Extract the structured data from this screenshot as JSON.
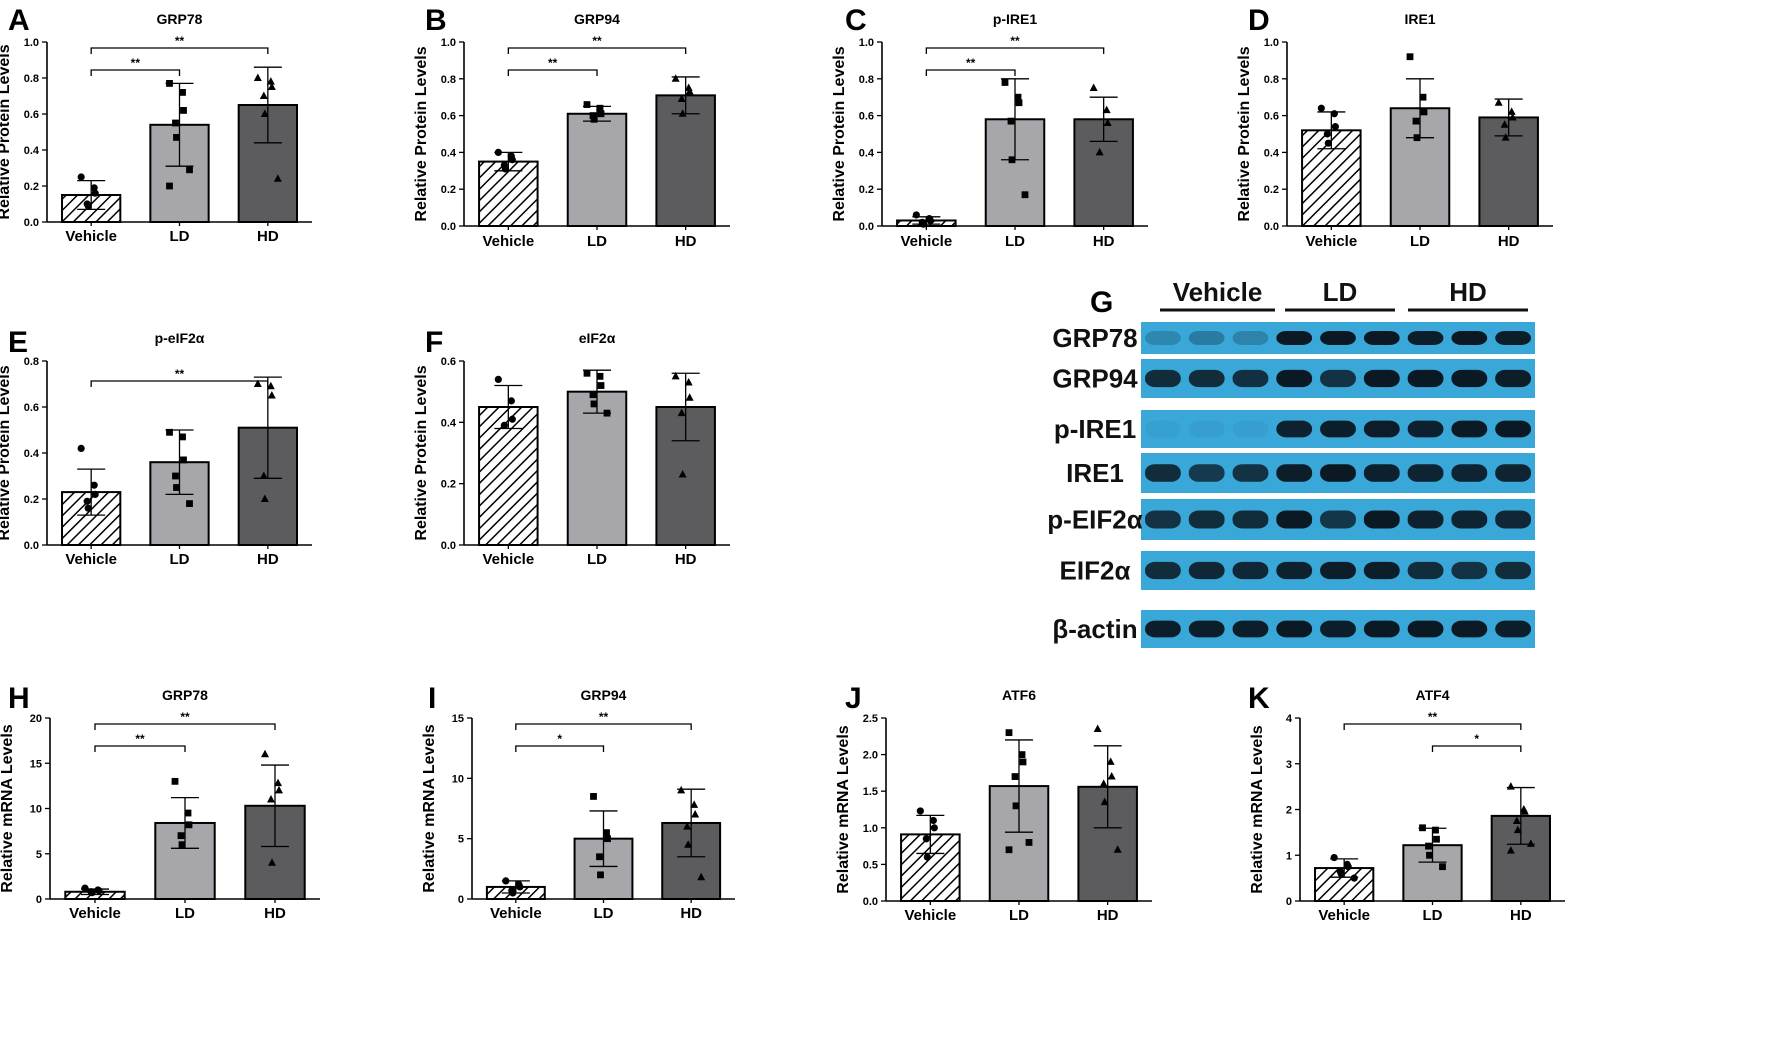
{
  "colors": {
    "vehicle_fill": "#ffffff",
    "ld_fill": "#a7a7ab",
    "hd_fill": "#5c5c5e",
    "blot_bg": "#39a7d8",
    "band": "#0a1620"
  },
  "chart_data": [
    {
      "panel": "A",
      "type": "bar",
      "title": "GRP78",
      "ylabel": "Relative Protein Levels",
      "ylim": [
        0,
        1.0
      ],
      "yticks": [
        "0.0",
        "0.2",
        "0.4",
        "0.6",
        "0.8",
        "1.0"
      ],
      "categories": [
        "Vehicle",
        "LD",
        "HD"
      ],
      "values": [
        0.15,
        0.54,
        0.65
      ],
      "errors": [
        0.08,
        0.23,
        0.21
      ],
      "points": [
        [
          0.25,
          0.19,
          0.16,
          0.1,
          0.09
        ],
        [
          0.77,
          0.72,
          0.62,
          0.55,
          0.47,
          0.29,
          0.2
        ],
        [
          0.8,
          0.78,
          0.75,
          0.7,
          0.6,
          0.24
        ]
      ],
      "significance": [
        {
          "from": 0,
          "to": 1,
          "label": "**"
        },
        {
          "from": 0,
          "to": 2,
          "label": "**"
        }
      ]
    },
    {
      "panel": "B",
      "type": "bar",
      "title": "GRP94",
      "ylabel": "Relative Protein Levels",
      "ylim": [
        0,
        1.0
      ],
      "yticks": [
        "0.0",
        "0.2",
        "0.4",
        "0.6",
        "0.8",
        "1.0"
      ],
      "categories": [
        "Vehicle",
        "LD",
        "HD"
      ],
      "values": [
        0.35,
        0.61,
        0.71
      ],
      "errors": [
        0.05,
        0.04,
        0.1
      ],
      "points": [
        [
          0.4,
          0.38,
          0.36,
          0.33,
          0.31
        ],
        [
          0.66,
          0.64,
          0.61,
          0.6,
          0.58
        ],
        [
          0.8,
          0.75,
          0.73,
          0.69,
          0.61
        ]
      ],
      "significance": [
        {
          "from": 0,
          "to": 1,
          "label": "**"
        },
        {
          "from": 0,
          "to": 2,
          "label": "**"
        }
      ]
    },
    {
      "panel": "C",
      "type": "bar",
      "title": "p-IRE1",
      "ylabel": "Relative Protein Levels",
      "ylim": [
        0,
        1.0
      ],
      "yticks": [
        "0.0",
        "0.2",
        "0.4",
        "0.6",
        "0.8",
        "1.0"
      ],
      "categories": [
        "Vehicle",
        "LD",
        "HD"
      ],
      "values": [
        0.03,
        0.58,
        0.58
      ],
      "errors": [
        0.02,
        0.22,
        0.12
      ],
      "points": [
        [
          0.06,
          0.04,
          0.03,
          0.02,
          0.01
        ],
        [
          0.78,
          0.7,
          0.67,
          0.57,
          0.36,
          0.17
        ],
        [
          0.75,
          0.63,
          0.56,
          0.4
        ]
      ],
      "significance": [
        {
          "from": 0,
          "to": 1,
          "label": "**"
        },
        {
          "from": 0,
          "to": 2,
          "label": "**"
        }
      ]
    },
    {
      "panel": "D",
      "type": "bar",
      "title": "IRE1",
      "ylabel": "Relative Protein Levels",
      "ylim": [
        0,
        1.0
      ],
      "yticks": [
        "0.0",
        "0.2",
        "0.4",
        "0.6",
        "0.8",
        "1.0"
      ],
      "categories": [
        "Vehicle",
        "LD",
        "HD"
      ],
      "values": [
        0.52,
        0.64,
        0.59
      ],
      "errors": [
        0.1,
        0.16,
        0.1
      ],
      "points": [
        [
          0.64,
          0.61,
          0.54,
          0.5,
          0.45
        ],
        [
          0.92,
          0.7,
          0.62,
          0.57,
          0.48
        ],
        [
          0.67,
          0.62,
          0.59,
          0.55,
          0.48
        ]
      ],
      "significance": []
    },
    {
      "panel": "E",
      "type": "bar",
      "title": "p-eIF2α",
      "ylabel": "Relative Protein Levels",
      "ylim": [
        0,
        0.8
      ],
      "yticks": [
        "0.0",
        "0.2",
        "0.4",
        "0.6",
        "0.8"
      ],
      "categories": [
        "Vehicle",
        "LD",
        "HD"
      ],
      "values": [
        0.23,
        0.36,
        0.51
      ],
      "errors": [
        0.1,
        0.14,
        0.22
      ],
      "points": [
        [
          0.42,
          0.26,
          0.22,
          0.19,
          0.16
        ],
        [
          0.49,
          0.47,
          0.37,
          0.3,
          0.25,
          0.18
        ],
        [
          0.7,
          0.69,
          0.65,
          0.3,
          0.2
        ]
      ],
      "significance": [
        {
          "from": 0,
          "to": 2,
          "label": "**"
        }
      ]
    },
    {
      "panel": "F",
      "type": "bar",
      "title": "eIF2α",
      "ylabel": "Relative Protein Levels",
      "ylim": [
        0,
        0.6
      ],
      "yticks": [
        "0.0",
        "0.2",
        "0.4",
        "0.6"
      ],
      "categories": [
        "Vehicle",
        "LD",
        "HD"
      ],
      "values": [
        0.45,
        0.5,
        0.45
      ],
      "errors": [
        0.07,
        0.07,
        0.11
      ],
      "points": [
        [
          0.54,
          0.47,
          0.41,
          0.39
        ],
        [
          0.56,
          0.55,
          0.52,
          0.49,
          0.46,
          0.43
        ],
        [
          0.55,
          0.53,
          0.48,
          0.43,
          0.23
        ]
      ],
      "significance": []
    },
    {
      "panel": "H",
      "type": "bar",
      "title": "GRP78",
      "ylabel": "Relative mRNA Levels",
      "ylim": [
        0,
        20
      ],
      "yticks": [
        "0",
        "5",
        "10",
        "15",
        "20"
      ],
      "categories": [
        "Vehicle",
        "LD",
        "HD"
      ],
      "values": [
        0.8,
        8.4,
        10.3
      ],
      "errors": [
        0.3,
        2.8,
        4.5
      ],
      "points": [
        [
          1.2,
          1.0,
          0.9,
          0.8,
          0.7
        ],
        [
          13.0,
          9.5,
          8.2,
          7.0,
          6.0
        ],
        [
          16.0,
          12.8,
          12.0,
          11.0,
          4.0
        ]
      ],
      "significance": [
        {
          "from": 0,
          "to": 1,
          "label": "**"
        },
        {
          "from": 0,
          "to": 2,
          "label": "**"
        }
      ]
    },
    {
      "panel": "I",
      "type": "bar",
      "title": "GRP94",
      "ylabel": "Relative mRNA Levels",
      "ylim": [
        0,
        15
      ],
      "yticks": [
        "0",
        "5",
        "10",
        "15"
      ],
      "categories": [
        "Vehicle",
        "LD",
        "HD"
      ],
      "values": [
        1.0,
        5.0,
        6.3
      ],
      "errors": [
        0.5,
        2.3,
        2.8
      ],
      "points": [
        [
          1.5,
          1.2,
          1.0,
          0.7,
          0.5
        ],
        [
          8.5,
          5.5,
          5.0,
          3.5,
          2.0
        ],
        [
          9.0,
          7.8,
          7.0,
          6.0,
          4.5,
          1.8
        ]
      ],
      "significance": [
        {
          "from": 0,
          "to": 1,
          "label": "*"
        },
        {
          "from": 0,
          "to": 2,
          "label": "**"
        }
      ]
    },
    {
      "panel": "J",
      "type": "bar",
      "title": "ATF6",
      "ylabel": "Relative mRNA Levels",
      "ylim": [
        0,
        2.5
      ],
      "yticks": [
        "0.0",
        "0.5",
        "1.0",
        "1.5",
        "2.0",
        "2.5"
      ],
      "categories": [
        "Vehicle",
        "LD",
        "HD"
      ],
      "values": [
        0.91,
        1.57,
        1.56
      ],
      "errors": [
        0.26,
        0.63,
        0.56
      ],
      "points": [
        [
          1.23,
          1.1,
          1.0,
          0.85,
          0.6
        ],
        [
          2.3,
          2.0,
          1.9,
          1.7,
          1.3,
          0.8,
          0.7
        ],
        [
          2.35,
          1.9,
          1.7,
          1.6,
          1.35,
          0.7
        ]
      ],
      "significance": []
    },
    {
      "panel": "K",
      "type": "bar",
      "title": "ATF4",
      "ylabel": "Relative mRNA Levels",
      "ylim": [
        0,
        4
      ],
      "yticks": [
        "0",
        "1",
        "2",
        "3",
        "4"
      ],
      "categories": [
        "Vehicle",
        "LD",
        "HD"
      ],
      "values": [
        0.72,
        1.22,
        1.86
      ],
      "errors": [
        0.2,
        0.37,
        0.62
      ],
      "points": [
        [
          0.95,
          0.8,
          0.75,
          0.65,
          0.6,
          0.5
        ],
        [
          1.6,
          1.55,
          1.35,
          1.2,
          1.0,
          0.75
        ],
        [
          2.5,
          2.0,
          1.95,
          1.75,
          1.55,
          1.25,
          1.1
        ]
      ],
      "significance": [
        {
          "from": 0,
          "to": 2,
          "label": "**"
        },
        {
          "from": 1,
          "to": 2,
          "label": "*"
        }
      ]
    }
  ],
  "western_blot": {
    "label": "G",
    "groups": [
      "Vehicle",
      "LD",
      "HD"
    ],
    "rows": [
      {
        "name": "GRP78",
        "intensity": [
          0.22,
          0.3,
          0.25,
          0.98,
          0.98,
          0.98,
          0.95,
          0.98,
          0.95
        ]
      },
      {
        "name": "GRP94",
        "intensity": [
          0.85,
          0.85,
          0.82,
          0.98,
          0.8,
          0.98,
          0.98,
          0.98,
          0.95
        ]
      },
      {
        "name": "p-IRE1",
        "intensity": [
          0.04,
          0.05,
          0.05,
          0.92,
          0.95,
          0.96,
          0.93,
          0.97,
          0.98
        ]
      },
      {
        "name": "IRE1",
        "intensity": [
          0.85,
          0.75,
          0.8,
          0.95,
          0.98,
          0.93,
          0.9,
          0.9,
          0.9
        ]
      },
      {
        "name": "p-EIF2α",
        "intensity": [
          0.8,
          0.85,
          0.85,
          0.98,
          0.78,
          0.98,
          0.92,
          0.9,
          0.88
        ]
      },
      {
        "name": "EIF2α",
        "intensity": [
          0.85,
          0.88,
          0.88,
          0.92,
          0.95,
          0.95,
          0.85,
          0.8,
          0.85
        ]
      },
      {
        "name": "β-actin",
        "intensity": [
          0.95,
          0.95,
          0.95,
          0.98,
          0.95,
          0.98,
          0.98,
          0.97,
          0.95
        ]
      }
    ]
  }
}
